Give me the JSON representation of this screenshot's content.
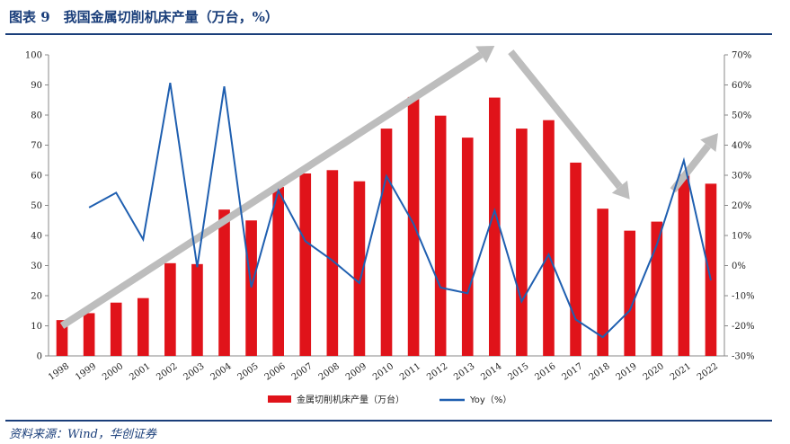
{
  "header": {
    "title": "图表 9　我国金属切削机床产量（万台，%）"
  },
  "footer": {
    "source": "资料来源：Wind，华创证券"
  },
  "chart_data": {
    "type": "bar",
    "title": "图表 9　我国金属切削机床产量（万台，%）",
    "categories": [
      "1998",
      "1999",
      "2000",
      "2001",
      "2002",
      "2003",
      "2004",
      "2005",
      "2006",
      "2007",
      "2008",
      "2009",
      "2010",
      "2011",
      "2012",
      "2013",
      "2014",
      "2015",
      "2016",
      "2017",
      "2018",
      "2019",
      "2020",
      "2021",
      "2022"
    ],
    "series": [
      {
        "name": "金属切削机床产量（万台）",
        "type": "bar",
        "axis": "left",
        "color": "#e0131a",
        "values": [
          11.9,
          14.2,
          17.7,
          19.2,
          30.8,
          30.5,
          48.6,
          45.0,
          56.1,
          60.6,
          61.7,
          58.0,
          75.5,
          86.0,
          79.8,
          72.5,
          85.8,
          75.5,
          78.3,
          64.2,
          48.9,
          41.6,
          44.6,
          60.2,
          57.2
        ]
      },
      {
        "name": "Yoy（%）",
        "type": "line",
        "axis": "right",
        "color": "#1f5fb0",
        "values": [
          null,
          19.3,
          24.2,
          8.7,
          60.7,
          -0.5,
          59.5,
          -7.2,
          24.9,
          8.1,
          1.7,
          -5.8,
          29.7,
          13.9,
          -7.3,
          -9.2,
          18.3,
          -11.9,
          3.7,
          -17.9,
          -23.8,
          -14.9,
          6.9,
          34.9,
          -4.9
        ]
      }
    ],
    "y_left": {
      "min": 0,
      "max": 100,
      "step": 10,
      "ticks": [
        "0",
        "10",
        "20",
        "30",
        "40",
        "50",
        "60",
        "70",
        "80",
        "90",
        "100"
      ]
    },
    "y_right": {
      "min": -30,
      "max": 70,
      "step": 10,
      "ticks": [
        "-30%",
        "-20%",
        "-10%",
        "0%",
        "10%",
        "20%",
        "30%",
        "40%",
        "50%",
        "60%",
        "70%"
      ]
    },
    "trend_arrows": {
      "color": "#bdbdbd",
      "items": [
        {
          "from": [
            "1998",
            10
          ],
          "to": [
            "2014",
            103
          ]
        },
        {
          "from": [
            "2014",
            101
          ],
          "to": [
            "2019",
            52
          ]
        },
        {
          "from": [
            "2020",
            55
          ],
          "to": [
            "2022",
            74
          ]
        }
      ]
    },
    "legend": {
      "position": "bottom",
      "items": [
        "金属切削机床产量（万台）",
        "Yoy（%）"
      ]
    },
    "grid": false
  }
}
